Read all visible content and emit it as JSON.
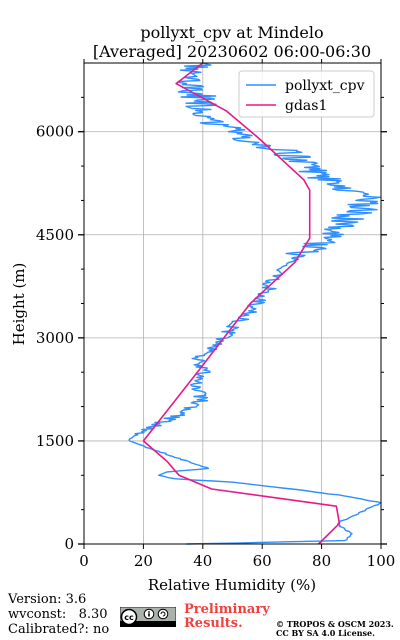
{
  "chart_data": {
    "type": "line",
    "title": "pollyxt_cpv at Mindelo",
    "subtitle": "[Averaged] 20230602 06:00-06:30",
    "xlabel": "Relative Humidity (%)",
    "ylabel": "Height (m)",
    "xlim": [
      0,
      100
    ],
    "ylim": [
      0,
      7000
    ],
    "xticks": [
      0,
      20,
      40,
      60,
      80,
      100
    ],
    "yticks": [
      0,
      1500,
      3000,
      4500,
      6000
    ],
    "grid": true,
    "legend_position": "top-right",
    "series": [
      {
        "name": "pollyxt_cpv",
        "color": "#2f8fff",
        "style": "noisy",
        "x": [
          35,
          88,
          90,
          85,
          95,
          100,
          88,
          70,
          50,
          30,
          25,
          28,
          42,
          35,
          25,
          18,
          15,
          20,
          28,
          35,
          40,
          37,
          40,
          38,
          44,
          47,
          50,
          54,
          58,
          62,
          64,
          66,
          68,
          72,
          76,
          80,
          84,
          88,
          93,
          96,
          90,
          82,
          76,
          72,
          68,
          62,
          55,
          50,
          45,
          42,
          40,
          38,
          35,
          33,
          40
        ],
        "y": [
          0,
          50,
          150,
          300,
          500,
          600,
          700,
          800,
          900,
          950,
          1000,
          1050,
          1100,
          1200,
          1350,
          1450,
          1500,
          1650,
          1800,
          1950,
          2100,
          2300,
          2500,
          2700,
          2850,
          3000,
          3150,
          3300,
          3500,
          3700,
          3900,
          4000,
          4100,
          4200,
          4300,
          4400,
          4550,
          4700,
          4850,
          5000,
          5150,
          5300,
          5450,
          5600,
          5700,
          5800,
          5900,
          6000,
          6100,
          6250,
          6400,
          6550,
          6700,
          6850,
          7000
        ]
      },
      {
        "name": "gdas1",
        "color": "#e8198b",
        "style": "line",
        "x": [
          79,
          86,
          85,
          43,
          32,
          28,
          20,
          40,
          56,
          71,
          76,
          76,
          74,
          59,
          48,
          31,
          40
        ],
        "y": [
          0,
          300,
          550,
          800,
          1000,
          1200,
          1500,
          2600,
          3500,
          4100,
          4450,
          5150,
          5300,
          5900,
          6300,
          6700,
          7000
        ]
      }
    ]
  },
  "footer": {
    "version": "Version: 3.6",
    "wvconst": "wvconst:   8.30",
    "calibrated": "Calibrated?: no",
    "preliminary_line1": "Preliminary",
    "preliminary_line2": "Results.",
    "copyright_line1": "© TROPOS & OSCM 2023.",
    "copyright_line2": "CC BY SA 4.0 License."
  }
}
